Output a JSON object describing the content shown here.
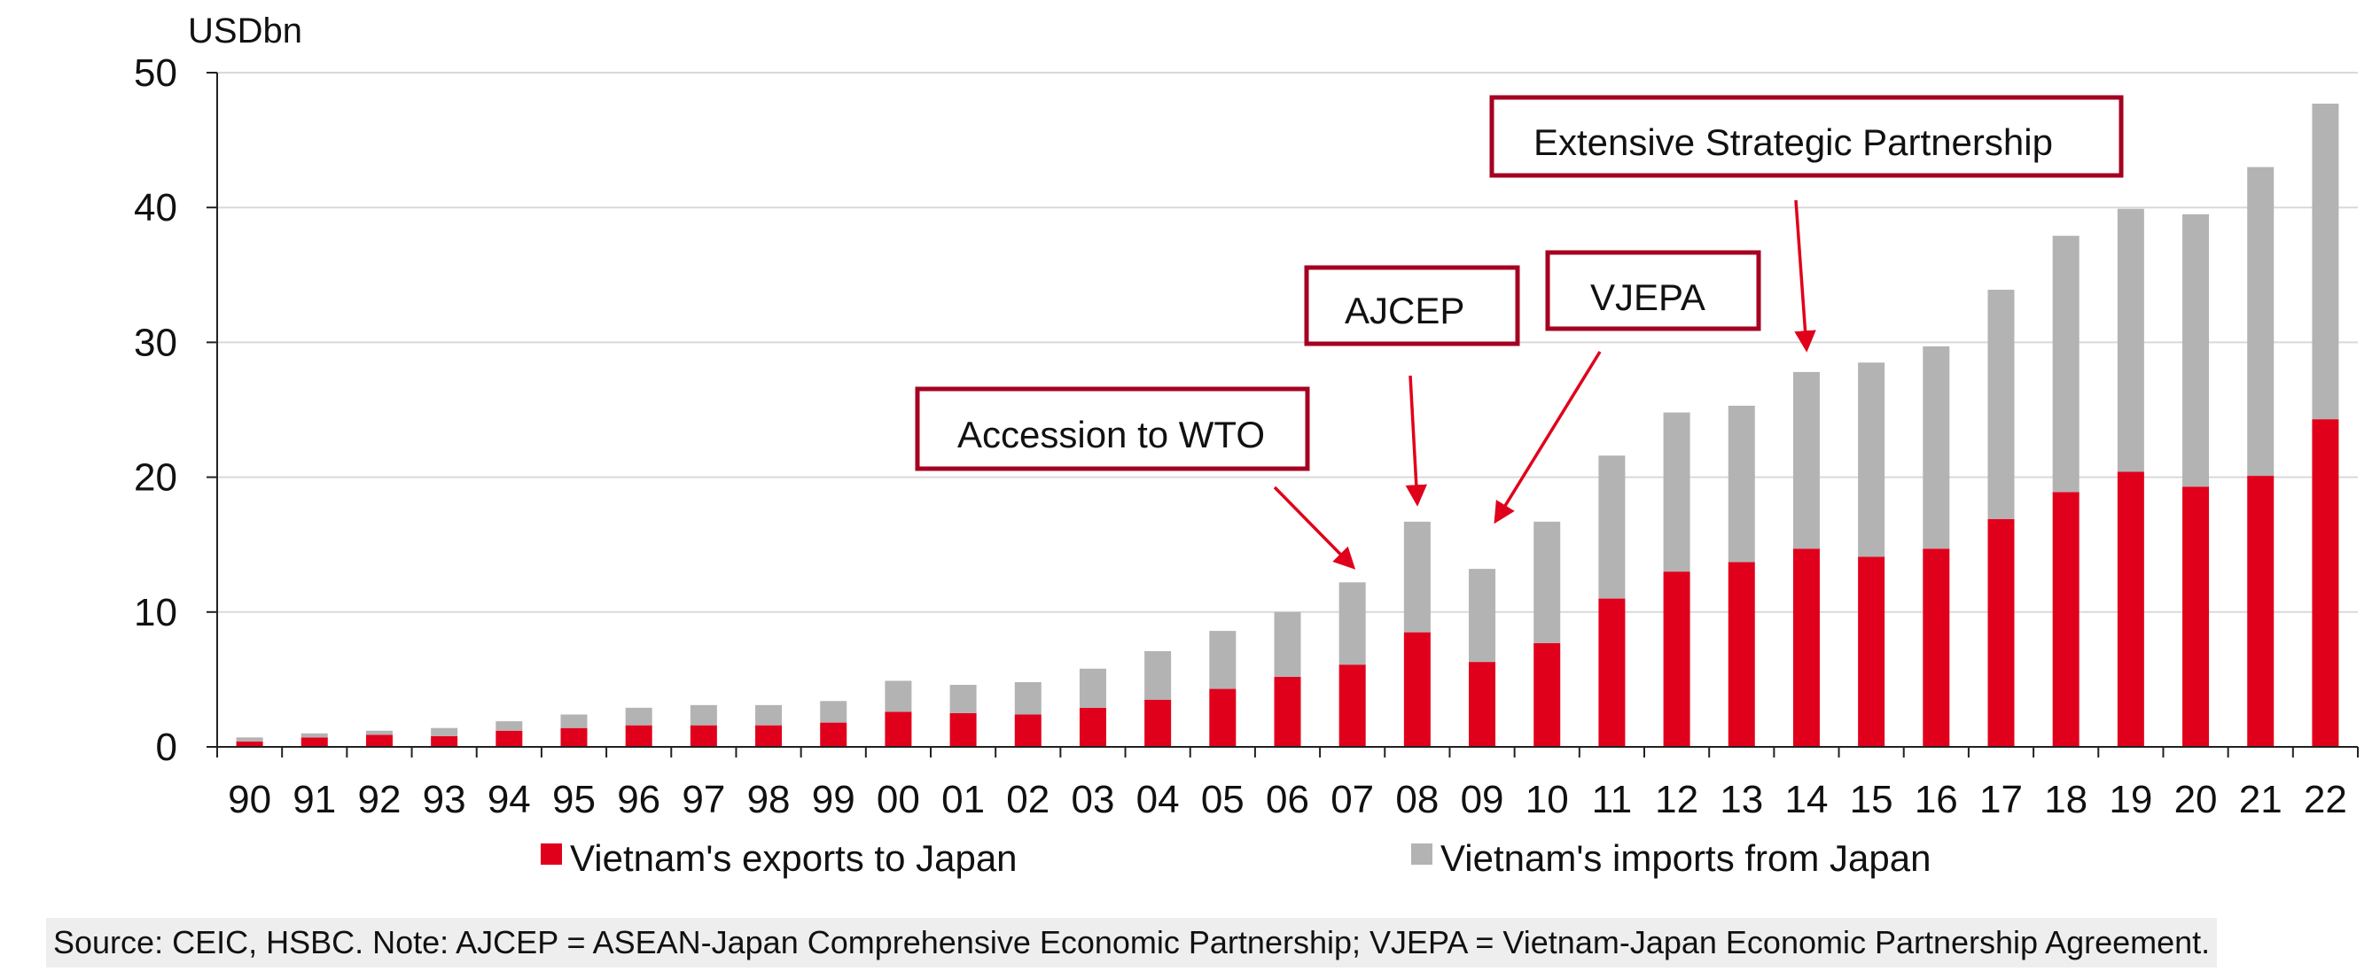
{
  "chart_data": {
    "type": "bar",
    "stacked": true,
    "unit": "USDbn",
    "categories": [
      "90",
      "91",
      "92",
      "93",
      "94",
      "95",
      "96",
      "97",
      "98",
      "99",
      "00",
      "01",
      "02",
      "03",
      "04",
      "05",
      "06",
      "07",
      "08",
      "09",
      "10",
      "11",
      "12",
      "13",
      "14",
      "15",
      "16",
      "17",
      "18",
      "19",
      "20",
      "21",
      "22"
    ],
    "series": [
      {
        "name": "Vietnam's exports to Japan",
        "color": "#e0001b",
        "values": [
          0.4,
          0.7,
          0.9,
          0.8,
          1.2,
          1.4,
          1.6,
          1.6,
          1.6,
          1.8,
          2.6,
          2.5,
          2.4,
          2.9,
          3.5,
          4.3,
          5.2,
          6.1,
          8.5,
          6.3,
          7.7,
          11.0,
          13.0,
          13.7,
          14.7,
          14.1,
          14.7,
          16.9,
          18.9,
          20.4,
          19.3,
          20.1,
          24.3
        ]
      },
      {
        "name": "Vietnam's imports from Japan",
        "color": "#b3b3b3",
        "values": [
          0.3,
          0.3,
          0.3,
          0.6,
          0.7,
          1.0,
          1.3,
          1.5,
          1.5,
          1.6,
          2.3,
          2.1,
          2.4,
          2.9,
          3.6,
          4.3,
          4.8,
          6.1,
          8.2,
          6.9,
          9.0,
          10.6,
          11.8,
          11.6,
          13.1,
          14.4,
          15.0,
          17.0,
          19.0,
          19.5,
          20.2,
          22.9,
          23.4
        ]
      }
    ],
    "ylim": [
      0,
      50
    ],
    "yticks": [
      0,
      10,
      20,
      30,
      40,
      50
    ],
    "grid": true,
    "annotations": [
      {
        "text": "Accession to WTO",
        "target": "07"
      },
      {
        "text": "AJCEP",
        "target": "08"
      },
      {
        "text": "VJEPA",
        "target": "09"
      },
      {
        "text": "Extensive Strategic  Partnership",
        "target": "14"
      }
    ],
    "legend_position": "bottom",
    "colors": {
      "annotation_box": "#a50021",
      "arrow": "#e0001b",
      "grid": "#d9d9d9"
    }
  },
  "source_note": "Source: CEIC, HSBC. Note: AJCEP = ASEAN-Japan Comprehensive Economic Partnership; VJEPA = Vietnam-Japan Economic Partnership Agreement."
}
